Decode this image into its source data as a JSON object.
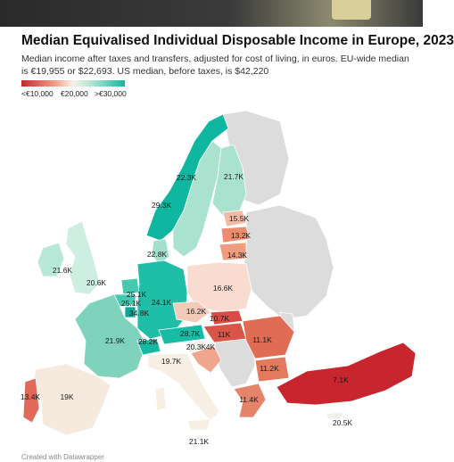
{
  "title": "Median Equivalised Individual Disposable Income in Europe, 2023",
  "subtitle": "Median income after taxes and transfers, adjusted for cost of living, in euros. EU-wide median is €19,955 or $22,693. US median, before taxes, is $42,220",
  "legend": {
    "low": "<€10,000",
    "mid": "€20,000",
    "high": ">€30,000"
  },
  "colors": {
    "low": "#c8262e",
    "mid": "#f7f1ea",
    "high": "#10b7a0",
    "nodata": "#dcdcdc"
  },
  "map_data": {
    "type": "choropleth",
    "unit": "EUR",
    "regions": [
      {
        "name": "Norway",
        "value_label": "29.3K",
        "value": 29300
      },
      {
        "name": "Sweden",
        "value_label": "22.3K",
        "value": 22300
      },
      {
        "name": "Finland",
        "value_label": "21.7K",
        "value": 21700
      },
      {
        "name": "Estonia",
        "value_label": "15.5K",
        "value": 15500
      },
      {
        "name": "Latvia",
        "value_label": "13.2K",
        "value": 13200
      },
      {
        "name": "Lithuania",
        "value_label": "14.3K",
        "value": 14300
      },
      {
        "name": "Denmark",
        "value_label": "22.8K",
        "value": 22800
      },
      {
        "name": "Ireland",
        "value_label": "21.6K",
        "value": 21600
      },
      {
        "name": "United Kingdom",
        "value_label": "20.6K",
        "value": 20600
      },
      {
        "name": "Netherlands",
        "value_label": "25.1K",
        "value": 25100
      },
      {
        "name": "Belgium",
        "value_label": "25.1K",
        "value": 25100
      },
      {
        "name": "Luxembourg",
        "value_label": "34.8K",
        "value": 34800
      },
      {
        "name": "Germany",
        "value_label": "24.1K",
        "value": 24100
      },
      {
        "name": "Poland",
        "value_label": "16.6K",
        "value": 16600
      },
      {
        "name": "Czechia",
        "value_label": "16.2K",
        "value": 16200
      },
      {
        "name": "Slovakia",
        "value_label": "10.7K",
        "value": 10700
      },
      {
        "name": "Austria",
        "value_label": "28.7K",
        "value": 28700
      },
      {
        "name": "Hungary",
        "value_label": "11K",
        "value": 11000
      },
      {
        "name": "Romania",
        "value_label": "11.1K",
        "value": 11100
      },
      {
        "name": "France",
        "value_label": "21.9K",
        "value": 21900
      },
      {
        "name": "Switzerland",
        "value_label": "28.2K",
        "value": 28200
      },
      {
        "name": "Slovenia",
        "value_label": "20.3K",
        "value": 20300
      },
      {
        "name": "Croatia",
        "value_label": "4K",
        "value": 4000
      },
      {
        "name": "Italy",
        "value_label": "19.7K",
        "value": 19700
      },
      {
        "name": "Bulgaria",
        "value_label": "11.2K",
        "value": 11200
      },
      {
        "name": "Greece",
        "value_label": "11.4K",
        "value": 11400
      },
      {
        "name": "Turkey",
        "value_label": "7.1K",
        "value": 7100
      },
      {
        "name": "Cyprus",
        "value_label": "20.5K",
        "value": 20500
      },
      {
        "name": "Portugal",
        "value_label": "13.4K",
        "value": 13400
      },
      {
        "name": "Spain",
        "value_label": "19K",
        "value": 19000
      },
      {
        "name": "Malta",
        "value_label": "21.1K",
        "value": 21100
      }
    ]
  },
  "credit": "Created with Datawrapper"
}
